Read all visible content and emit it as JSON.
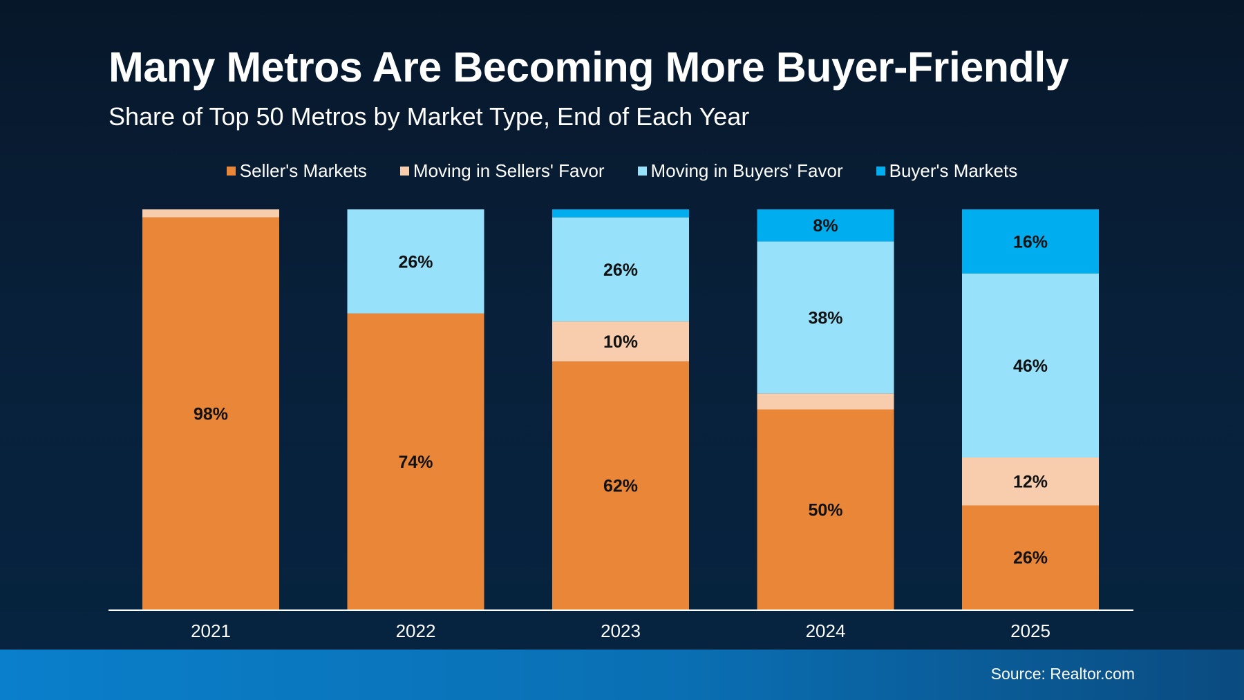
{
  "chart_data": {
    "type": "bar",
    "stacked": true,
    "title": "Many Metros Are Becoming More Buyer-Friendly",
    "subtitle": "Share of Top 50 Metros by Market Type, End of Each Year",
    "categories": [
      "2021",
      "2022",
      "2023",
      "2024",
      "2025"
    ],
    "series": [
      {
        "name": "Seller's Markets",
        "color": "#ea8638",
        "values": [
          98,
          74,
          62,
          50,
          26
        ]
      },
      {
        "name": "Moving in Sellers' Favor",
        "color": "#f7cdae",
        "values": [
          2,
          0,
          10,
          4,
          12
        ]
      },
      {
        "name": "Moving in Buyers' Favor",
        "color": "#97e1fb",
        "values": [
          0,
          26,
          26,
          38,
          46
        ]
      },
      {
        "name": "Buyer's Markets",
        "color": "#00aeef",
        "values": [
          0,
          0,
          2,
          8,
          16
        ]
      }
    ],
    "data_labels": [
      [
        "98%",
        "",
        "",
        ""
      ],
      [
        "74%",
        "",
        "26%",
        ""
      ],
      [
        "62%",
        "10%",
        "26%",
        ""
      ],
      [
        "50%",
        "",
        "38%",
        "8%"
      ],
      [
        "26%",
        "12%",
        "46%",
        "16%"
      ]
    ],
    "ylim": [
      0,
      100
    ],
    "grid": false,
    "legend_position": "top-center"
  },
  "source": "Source: Realtor.com",
  "colors": {
    "background_top": "#07172a",
    "background_bottom": "#062440",
    "footer_band": "#0a7fcb",
    "label_text": "#111111"
  }
}
